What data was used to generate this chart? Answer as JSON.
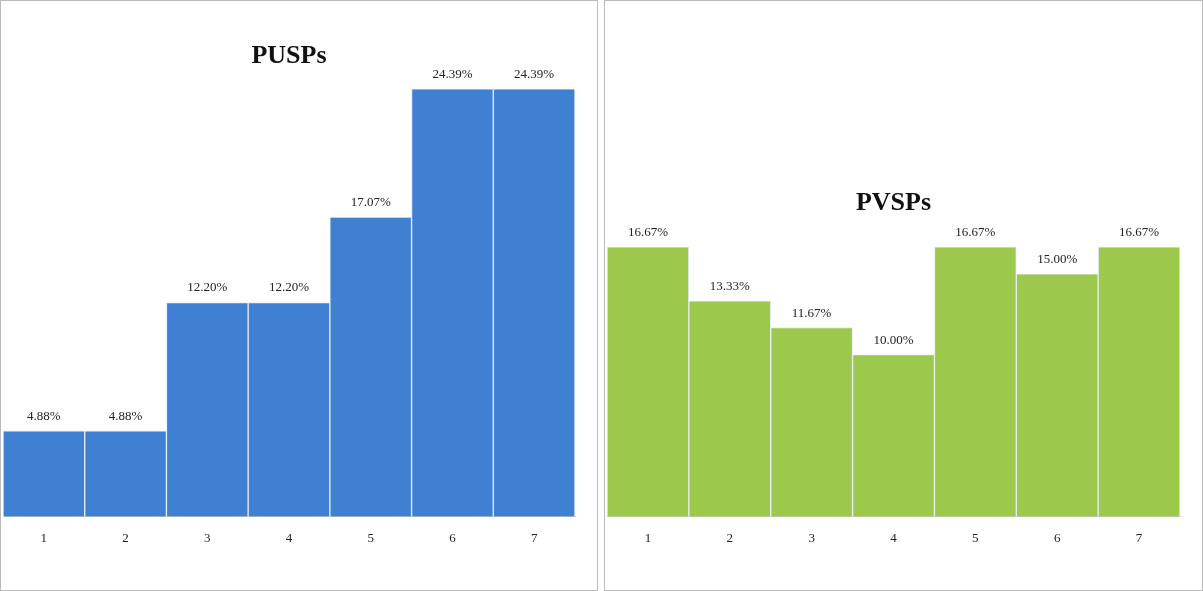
{
  "chart_data": [
    {
      "type": "bar",
      "title": "PUSPs",
      "categories": [
        "1",
        "2",
        "3",
        "4",
        "5",
        "6",
        "7"
      ],
      "values": [
        4.88,
        4.88,
        12.2,
        12.2,
        17.07,
        24.39,
        24.39
      ],
      "color": "#3f80d2",
      "tick_labels": "x",
      "grid": false,
      "legend": false,
      "value_labels": [
        "4.88%",
        "4.88%",
        "12.20%",
        "12.20%",
        "17.07%",
        "24.39%",
        "24.39%"
      ]
    },
    {
      "type": "bar",
      "title": "PVSPs",
      "categories": [
        "1",
        "2",
        "3",
        "4",
        "5",
        "6",
        "7"
      ],
      "values": [
        16.67,
        13.33,
        11.67,
        10.0,
        16.67,
        15.0,
        16.67
      ],
      "color": "#9cc94c",
      "tick_labels": "x",
      "grid": false,
      "legend": false,
      "value_labels": [
        "16.67%",
        "13.33%",
        "11.67%",
        "10.00%",
        "16.67%",
        "15.00%",
        "16.67%"
      ]
    }
  ]
}
